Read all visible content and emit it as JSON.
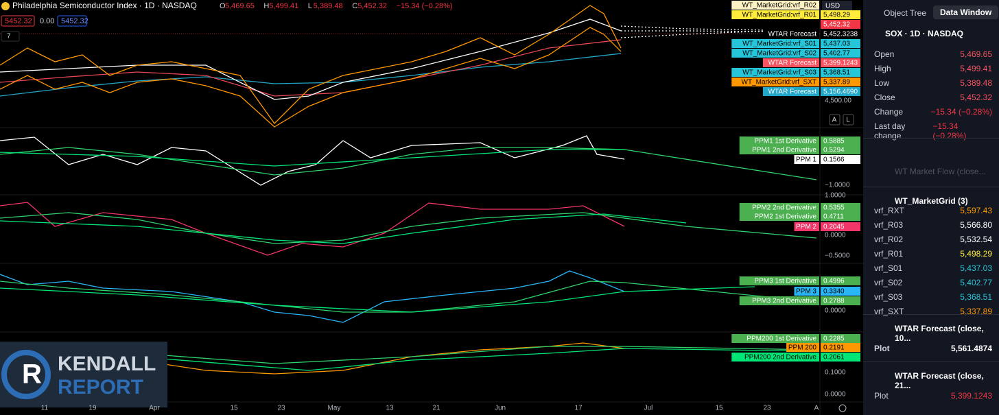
{
  "header": {
    "title": "Philadelphia Semiconductor Index · 1D · NASDAQ",
    "o_key": "O",
    "o": "5,469.65",
    "h_key": "H",
    "h": "5,499.41",
    "l_key": "L",
    "l": "5,389.48",
    "c_key": "C",
    "c": "5,452.32",
    "change": "−15.34 (−0.28%)",
    "bid": "5452.32",
    "spread": "0.00",
    "ask": "5452.32",
    "indicators": "7",
    "currency": "USD"
  },
  "price_labels": [
    {
      "name": "WT_MarketGrid:vrf_R02",
      "bg": "#fff3c4",
      "fg": "#000"
    },
    {
      "name": "WT_MarketGrid:vrf_R01",
      "value": "5,498.29",
      "bg": "#ffeb3b",
      "fg": "#000"
    },
    {
      "value": "5,452.32",
      "bg": "#f23645",
      "fg": "#fff"
    },
    {
      "name": "WTAR Forecast",
      "value": "5,452.3238",
      "bg": "#000",
      "fg": "#fff"
    },
    {
      "name": "WT_MarketGrid:vrf_S01",
      "value": "5,437.03",
      "bg": "#26c6da",
      "fg": "#000"
    },
    {
      "name": "WT_MarketGrid:vrf_S02",
      "value": "5,402.77",
      "bg": "#26c6da",
      "fg": "#000"
    },
    {
      "name": "WTAR Forecast",
      "value": "5,399.1243",
      "bg": "#f7525f",
      "fg": "#fff"
    },
    {
      "name": "WT_MarketGrid:vrf_S03",
      "value": "5,368.51",
      "bg": "#26c6da",
      "fg": "#000"
    },
    {
      "name": "WT_MarketGrid:vrf_SXT",
      "value": "5,337.89",
      "bg": "#ff9800",
      "fg": "#000"
    },
    {
      "name": "WTAR Forecast",
      "value": "5,156.4690",
      "bg": "#22a7c9",
      "fg": "#fff"
    }
  ],
  "price_axis": [
    "4,500.00"
  ],
  "scale_buttons": [
    "A",
    "L"
  ],
  "panes": [
    {
      "labels": [
        {
          "name": "PPM1 1st Derivative",
          "value": "0.5885",
          "bg": "#4caf50",
          "fg": "#fff"
        },
        {
          "name": "PPM1 2nd Derivative",
          "value": "0.5294",
          "bg": "#4caf50",
          "fg": "#fff"
        },
        {
          "name": "PPM 1",
          "value": "0.1566",
          "bg": "#ffffff",
          "fg": "#000"
        }
      ],
      "axis": [
        "−1.0000"
      ]
    },
    {
      "labels": [
        {
          "name": "PPM2 2nd Derivative",
          "value": "0.5355",
          "bg": "#4caf50",
          "fg": "#fff"
        },
        {
          "name": "PPM2 1st Derivative",
          "value": "0.4711",
          "bg": "#4caf50",
          "fg": "#fff"
        },
        {
          "name": "PPM 2",
          "value": "0.2045",
          "bg": "#f23669",
          "fg": "#fff"
        }
      ],
      "axis": [
        "1.0000",
        "0.0000",
        "−0.5000"
      ]
    },
    {
      "labels": [
        {
          "name": "PPM3 1st Derivative",
          "value": "0.4996",
          "bg": "#4caf50",
          "fg": "#fff"
        },
        {
          "name": "PPM 3",
          "value": "0.3340",
          "bg": "#29b6f6",
          "fg": "#000"
        },
        {
          "name": "PPM3 2nd Derivative",
          "value": "0.2788",
          "bg": "#4caf50",
          "fg": "#fff"
        }
      ],
      "axis": [
        "0.0000"
      ]
    },
    {
      "labels": [
        {
          "name": "PPM200 1st Derivative",
          "value": "0.2285",
          "bg": "#4caf50",
          "fg": "#fff"
        },
        {
          "name": "PPM 200",
          "value": "0.2191",
          "bg": "#ff9800",
          "fg": "#000"
        },
        {
          "name": "PPM200 2nd Derivative",
          "value": "0.2061",
          "bg": "#00e676",
          "fg": "#000"
        }
      ],
      "axis": [
        "0.1000",
        "0.0000"
      ]
    }
  ],
  "x_axis": [
    "11",
    "19",
    "Apr",
    "15",
    "23",
    "May",
    "13",
    "21",
    "Jun",
    "17",
    "Jul",
    "15",
    "23",
    "A"
  ],
  "logo": {
    "line1": "KENDALL",
    "line2": "REPORT"
  },
  "side": {
    "tabs": [
      "Object Tree",
      "Data Window"
    ],
    "symbol": "SOX · 1D · NASDAQ",
    "rows": [
      {
        "k": "Open",
        "v": "5,469.65"
      },
      {
        "k": "High",
        "v": "5,499.41"
      },
      {
        "k": "Low",
        "v": "5,389.48"
      },
      {
        "k": "Close",
        "v": "5,452.32"
      },
      {
        "k": "Change",
        "v": "−15.34 (−0.28%)"
      },
      {
        "k": "Last day change",
        "v": "−15.34 (−0.28%)"
      }
    ],
    "flow": "WT Market Flow (close...",
    "grid_title": "WT_MarketGrid (3)",
    "grid": [
      {
        "k": "vrf_RXT",
        "v": "5,597.43",
        "c": "#ff9800"
      },
      {
        "k": "vrf_R03",
        "v": "5,566.80",
        "c": "#fff"
      },
      {
        "k": "vrf_R02",
        "v": "5,532.54",
        "c": "#fff"
      },
      {
        "k": "vrf_R01",
        "v": "5,498.29",
        "c": "#ffeb3b"
      },
      {
        "k": "vrf_S01",
        "v": "5,437.03",
        "c": "#26c6da"
      },
      {
        "k": "vrf_S02",
        "v": "5,402.77",
        "c": "#26c6da"
      },
      {
        "k": "vrf_S03",
        "v": "5,368.51",
        "c": "#26c6da"
      },
      {
        "k": "vrf_SXT",
        "v": "5,337.89",
        "c": "#ff9800"
      }
    ],
    "f1_title": "WTAR Forecast (close, 10...",
    "f1_k": "Plot",
    "f1_v": "5,561.4874",
    "f2_title": "WTAR Forecast (close, 21...",
    "f2_k": "Plot",
    "f2_v": "5,399.1243"
  }
}
